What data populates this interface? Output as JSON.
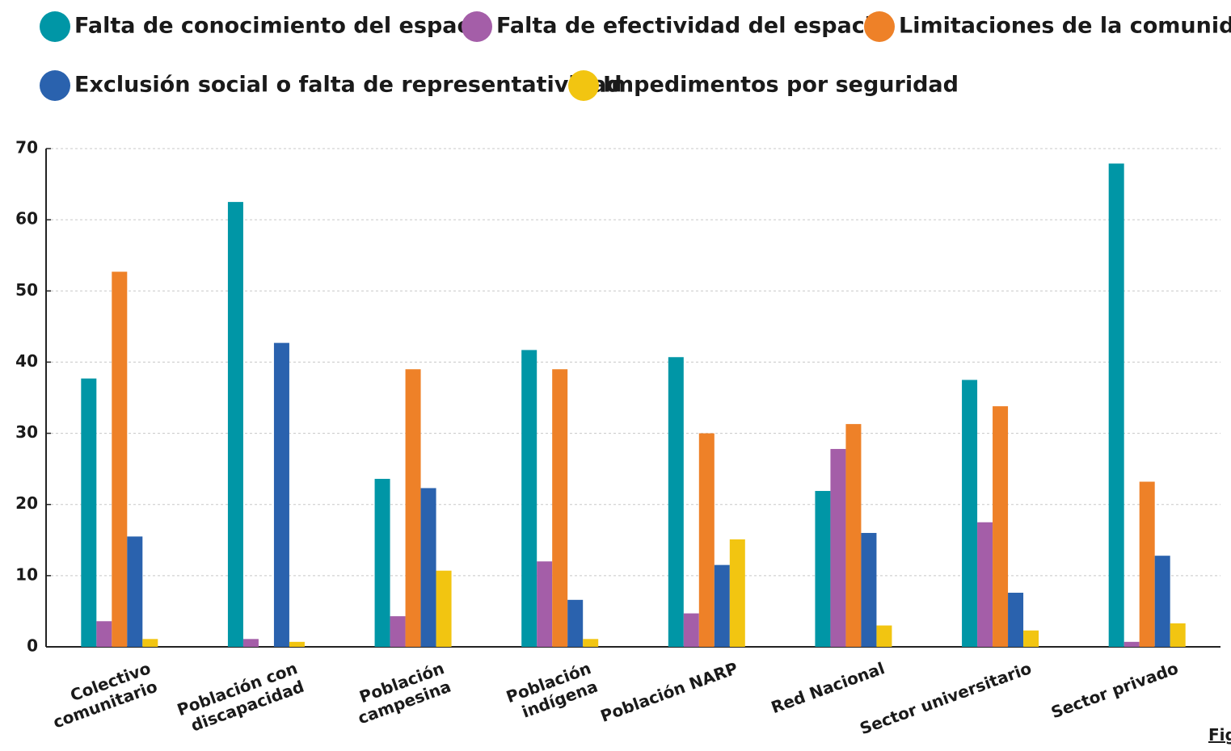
{
  "chart_data": {
    "type": "bar",
    "categories": [
      "Colectivo\ncomunitario",
      "Población con\ndiscapacidad",
      "Población\ncampesina",
      "Población\nindígena",
      "Población NARP",
      "Red Nacional",
      "Sector universitario",
      "Sector privado"
    ],
    "series": [
      {
        "name": "Falta de conocimiento del espacio",
        "color": "#0096a6",
        "values": [
          37.7,
          62.5,
          23.6,
          41.7,
          40.7,
          21.9,
          37.5,
          67.9
        ]
      },
      {
        "name": "Falta de efectividad del espacio",
        "color": "#a45ea8",
        "values": [
          3.6,
          1.1,
          4.3,
          12,
          4.7,
          27.8,
          17.5,
          0.7
        ]
      },
      {
        "name": "Limitaciones de la comunidad",
        "color": "#ee8128",
        "values": [
          52.7,
          0,
          39,
          39,
          30,
          31.3,
          33.8,
          23.2
        ]
      },
      {
        "name": "Exclusión social o falta de representatividad",
        "color": "#2a62ae",
        "values": [
          15.5,
          42.7,
          22.3,
          6.6,
          11.5,
          16,
          7.6,
          12.8
        ]
      },
      {
        "name": "Impedimentos por seguridad",
        "color": "#f2c511",
        "values": [
          1.1,
          0.7,
          10.7,
          1.1,
          15.1,
          3,
          2.3,
          3.3
        ]
      }
    ],
    "ylim": [
      0,
      70
    ],
    "yticks": [
      0,
      10,
      20,
      30,
      40,
      50,
      60,
      70
    ],
    "grid": true,
    "legend": "top"
  },
  "footer_link": "Fig"
}
